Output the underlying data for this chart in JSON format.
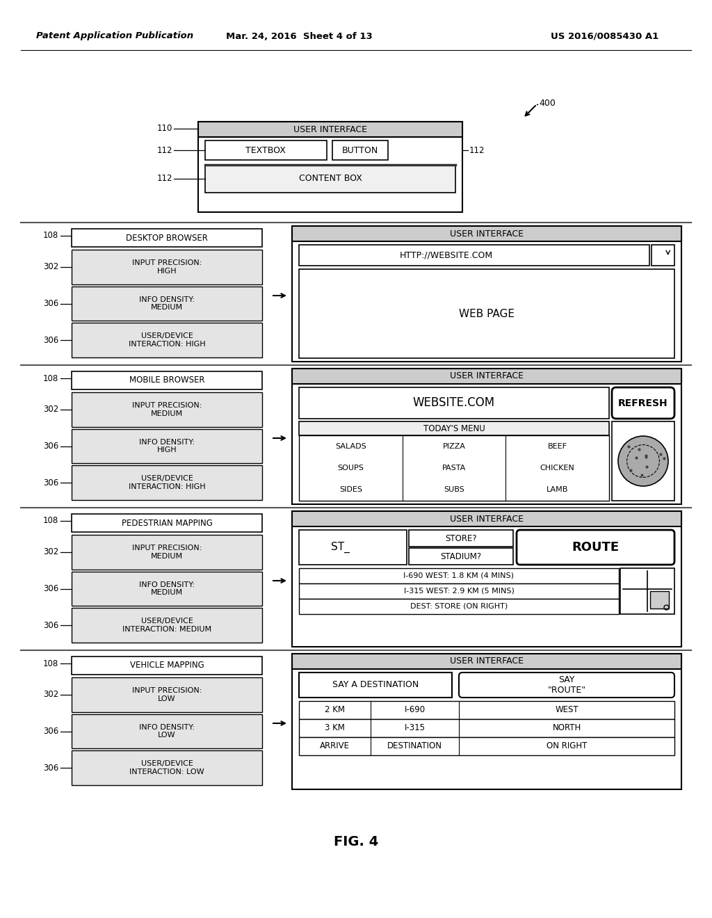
{
  "bg_color": "#ffffff",
  "header_left": "Patent Application Publication",
  "header_mid": "Mar. 24, 2016  Sheet 4 of 13",
  "header_right": "US 2016/0085430 A1",
  "fig_label": "FIG. 4",
  "ref_400": "400",
  "top_diagram": {
    "outer_label": "USER INTERFACE",
    "textbox_label": "TEXTBOX",
    "button_label": "BUTTON",
    "content_label": "CONTENT BOX"
  },
  "rows": [
    {
      "section_ref": "108",
      "title": "DESKTOP BROWSER",
      "left_boxes": [
        {
          "ref": "302",
          "text": "INPUT PRECISION:\nHIGH"
        },
        {
          "ref": "306",
          "text": "INFO DENSITY:\nMEDIUM"
        },
        {
          "ref": "306",
          "text": "USER/DEVICE\nINTERACTION: HIGH"
        }
      ],
      "ui_title": "USER INTERFACE",
      "ui_content_type": "desktop_browser"
    },
    {
      "section_ref": "108",
      "title": "MOBILE BROWSER",
      "left_boxes": [
        {
          "ref": "302",
          "text": "INPUT PRECISION:\nMEDIUM"
        },
        {
          "ref": "306",
          "text": "INFO DENSITY:\nHIGH"
        },
        {
          "ref": "306",
          "text": "USER/DEVICE\nINTERACTION: HIGH"
        }
      ],
      "ui_title": "USER INTERFACE",
      "ui_content_type": "mobile_browser"
    },
    {
      "section_ref": "108",
      "title": "PEDESTRIAN MAPPING",
      "left_boxes": [
        {
          "ref": "302",
          "text": "INPUT PRECISION:\nMEDIUM"
        },
        {
          "ref": "306",
          "text": "INFO DENSITY:\nMEDIUM"
        },
        {
          "ref": "306",
          "text": "USER/DEVICE\nINTERACTION: MEDIUM"
        }
      ],
      "ui_title": "USER INTERFACE",
      "ui_content_type": "pedestrian_mapping"
    },
    {
      "section_ref": "108",
      "title": "VEHICLE MAPPING",
      "left_boxes": [
        {
          "ref": "302",
          "text": "INPUT PRECISION:\nLOW"
        },
        {
          "ref": "306",
          "text": "INFO DENSITY:\nLOW"
        },
        {
          "ref": "306",
          "text": "USER/DEVICE\nINTERACTION: LOW"
        }
      ],
      "ui_title": "USER INTERFACE",
      "ui_content_type": "vehicle_mapping"
    }
  ]
}
